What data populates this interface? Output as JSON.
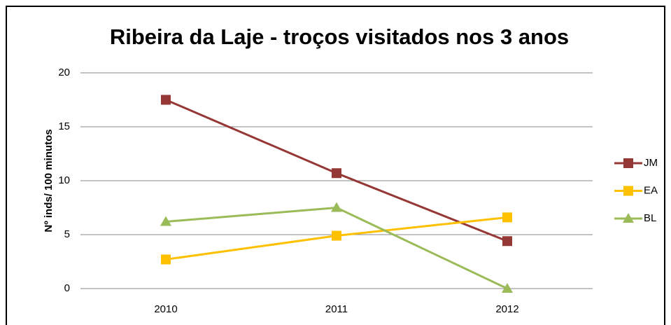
{
  "chart_data": {
    "type": "line",
    "title": "Ribeira da Laje - troços visitados nos 3 anos",
    "ylabel": "Nº inds/ 100 minutos",
    "categories": [
      "2010",
      "2011",
      "2012"
    ],
    "series": [
      {
        "name": "JM",
        "color": "#953735",
        "marker": "square",
        "values": [
          17.5,
          10.7,
          4.4
        ]
      },
      {
        "name": "EA",
        "color": "#FFC000",
        "marker": "square",
        "values": [
          2.7,
          4.9,
          6.6
        ]
      },
      {
        "name": "BL",
        "color": "#9BBB59",
        "marker": "triangle",
        "values": [
          6.2,
          7.5,
          0
        ]
      }
    ],
    "ylim": [
      0,
      20
    ],
    "yticks": [
      0,
      5,
      10,
      15,
      20
    ],
    "grid": true,
    "legend": "right"
  }
}
